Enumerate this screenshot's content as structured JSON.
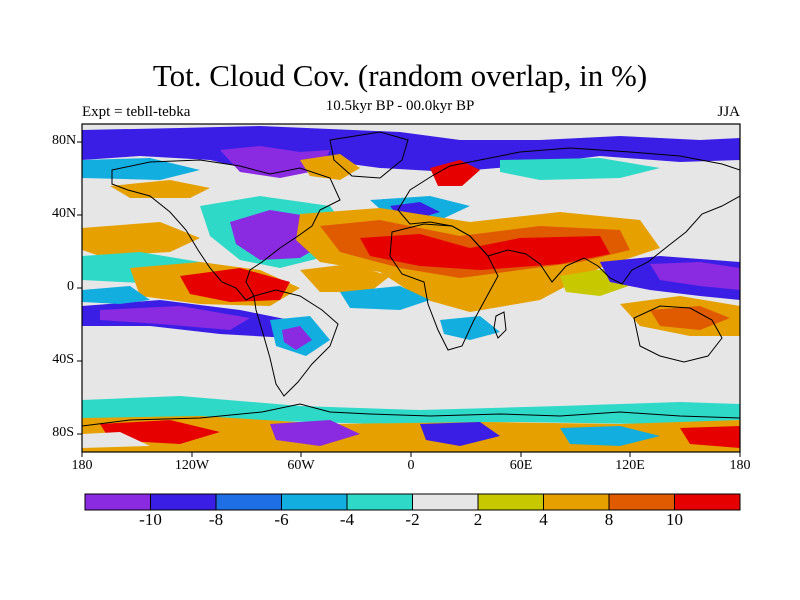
{
  "map": {
    "title": "Tot. Cloud Cov. (random overlap, in %)",
    "experiment": "Expt = tebll-tebka",
    "period": "10.5kyr BP - 00.0kyr BP",
    "season": "JJA",
    "lat_ticks": [
      "80N",
      "40N",
      "0",
      "40S",
      "80S"
    ],
    "lon_ticks": [
      "180",
      "120W",
      "60W",
      "0",
      "60E",
      "120E",
      "180"
    ],
    "regions": [
      "Arctic / North Atlantic mixed anomalies",
      "Sahara-Arabia-India positive anomaly band",
      "Equatorial Pacific / Central America negative band",
      "Tropical Atlantic positive anomaly",
      "Southern Ocean mixed anomalies"
    ]
  },
  "colorbar": {
    "colors": [
      "#8a2be2",
      "#3b1ee6",
      "#1e6fe6",
      "#12aee0",
      "#2ed9c8",
      "#e6e6e6",
      "#c8c800",
      "#e6a000",
      "#e05a00",
      "#e60000"
    ],
    "labels": [
      "-10",
      "-8",
      "-6",
      "-4",
      "-2",
      "2",
      "4",
      "8",
      "10"
    ]
  }
}
